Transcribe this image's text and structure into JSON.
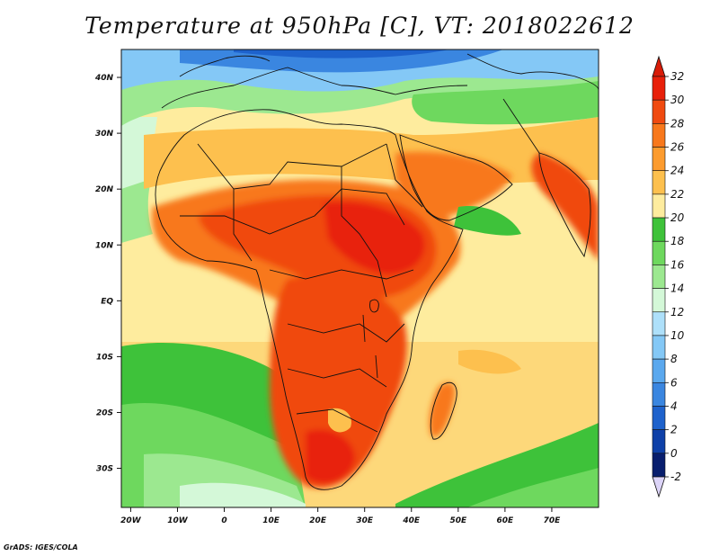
{
  "title": "Temperature at 950hPa [C], VT: 2018022612",
  "footer": "GrADS: IGES/COLA",
  "map": {
    "lon_range": [
      -22,
      80
    ],
    "lat_range": [
      -37,
      45
    ],
    "lon_ticks": [
      {
        "value": -20,
        "label": "20W"
      },
      {
        "value": -10,
        "label": "10W"
      },
      {
        "value": 0,
        "label": "0"
      },
      {
        "value": 10,
        "label": "10E"
      },
      {
        "value": 20,
        "label": "20E"
      },
      {
        "value": 30,
        "label": "30E"
      },
      {
        "value": 40,
        "label": "40E"
      },
      {
        "value": 50,
        "label": "50E"
      },
      {
        "value": 60,
        "label": "60E"
      },
      {
        "value": 70,
        "label": "70E"
      }
    ],
    "lat_ticks": [
      {
        "value": 40,
        "label": "40N"
      },
      {
        "value": 30,
        "label": "30N"
      },
      {
        "value": 20,
        "label": "20N"
      },
      {
        "value": 10,
        "label": "10N"
      },
      {
        "value": 0,
        "label": "EQ"
      },
      {
        "value": -10,
        "label": "10S"
      },
      {
        "value": -20,
        "label": "20S"
      },
      {
        "value": -30,
        "label": "30S"
      }
    ]
  },
  "colorbar": {
    "levels": [
      32,
      30,
      28,
      26,
      24,
      22,
      20,
      18,
      16,
      14,
      12,
      10,
      8,
      6,
      4,
      2,
      0,
      -2
    ],
    "colors": [
      "#e8200a",
      "#f04a10",
      "#f8781c",
      "#fc9b2e",
      "#fdc04e",
      "#feec9e",
      "#3ec23a",
      "#6ed85e",
      "#9ce890",
      "#d4f8d8",
      "#aee0fa",
      "#84c8f6",
      "#5aa8ee",
      "#3a86e0",
      "#1e62cc",
      "#0e40a8",
      "#081e6e"
    ],
    "top_color": "#d81c08",
    "bottom_color": "#dcd4f8"
  }
}
